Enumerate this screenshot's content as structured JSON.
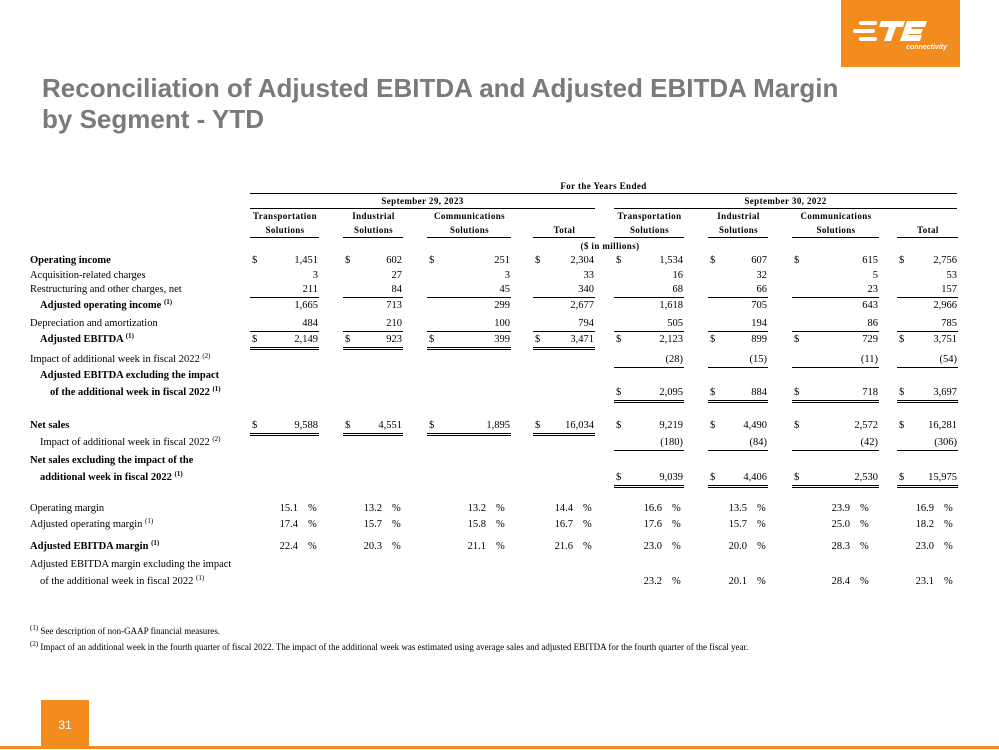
{
  "brand": {
    "name": "TE",
    "tagline": "connectivity",
    "accent_color": "#f28c1e"
  },
  "title": "Reconciliation of Adjusted EBITDA and Adjusted EBITDA Margin by Segment - YTD",
  "table": {
    "period_header": "For the Years Ended",
    "group_2023": "September 29, 2023",
    "group_2022": "September 30, 2022",
    "units": "($ in millions)",
    "columns": [
      {
        "l1": "Transportation",
        "l2": "Solutions"
      },
      {
        "l1": "Industrial",
        "l2": "Solutions"
      },
      {
        "l1": "Communications",
        "l2": "Solutions"
      },
      {
        "l1": "",
        "l2": "Total"
      },
      {
        "l1": "Transportation",
        "l2": "Solutions"
      },
      {
        "l1": "Industrial",
        "l2": "Solutions"
      },
      {
        "l1": "Communications",
        "l2": "Solutions"
      },
      {
        "l1": "",
        "l2": "Total"
      }
    ],
    "rows": [
      {
        "label": "Operating income",
        "sup": "",
        "bold": true,
        "indent": 0,
        "dollar": [
          true,
          true,
          true,
          true,
          true,
          true,
          true,
          true
        ],
        "values": [
          "1,451",
          "602",
          "251",
          "2,304",
          "1,534",
          "607",
          "615",
          "2,756"
        ]
      },
      {
        "label": "Acquisition-related charges",
        "sup": "",
        "bold": false,
        "indent": 0,
        "dollar": [
          false,
          false,
          false,
          false,
          false,
          false,
          false,
          false
        ],
        "values": [
          "3",
          "27",
          "3",
          "33",
          "16",
          "32",
          "5",
          "53"
        ]
      },
      {
        "label": "Restructuring and other charges, net",
        "sup": "",
        "bold": false,
        "indent": 0,
        "dollar": [
          false,
          false,
          false,
          false,
          false,
          false,
          false,
          false
        ],
        "values": [
          "211",
          "84",
          "45",
          "340",
          "68",
          "66",
          "23",
          "157"
        ]
      },
      {
        "label": "Adjusted operating income",
        "sup": "(1)",
        "bold": true,
        "indent": 1,
        "dollar": [
          false,
          false,
          false,
          false,
          false,
          false,
          false,
          false
        ],
        "values": [
          "1,665",
          "713",
          "299",
          "2,677",
          "1,618",
          "705",
          "643",
          "2,966"
        ]
      },
      {
        "label": "Depreciation and amortization",
        "sup": "",
        "bold": false,
        "indent": 0,
        "dollar": [
          false,
          false,
          false,
          false,
          false,
          false,
          false,
          false
        ],
        "values": [
          "484",
          "210",
          "100",
          "794",
          "505",
          "194",
          "86",
          "785"
        ]
      },
      {
        "label": "Adjusted EBITDA",
        "sup": "(1)",
        "bold": true,
        "indent": 1,
        "dollar": [
          true,
          true,
          true,
          true,
          true,
          true,
          true,
          true
        ],
        "values": [
          "2,149",
          "923",
          "399",
          "3,471",
          "2,123",
          "899",
          "729",
          "3,751"
        ]
      },
      {
        "label": "Impact of additional week in fiscal 2022",
        "sup": "(2)",
        "bold": false,
        "indent": 0,
        "dollar": [
          false,
          false,
          false,
          false,
          false,
          false,
          false,
          false
        ],
        "values": [
          "",
          "",
          "",
          "",
          "(28)",
          "(15)",
          "(11)",
          "(54)"
        ]
      },
      {
        "label": "Adjusted EBITDA excluding the impact",
        "label2": "of the additional week in fiscal 2022",
        "sup": "(1)",
        "bold": true,
        "indent": 1,
        "dollar": [
          false,
          false,
          false,
          false,
          true,
          true,
          true,
          true
        ],
        "values": [
          "",
          "",
          "",
          "",
          "2,095",
          "884",
          "718",
          "3,697"
        ]
      },
      {
        "label": "Net sales",
        "sup": "",
        "bold": true,
        "indent": 0,
        "dollar": [
          true,
          true,
          true,
          true,
          true,
          true,
          true,
          true
        ],
        "values": [
          "9,588",
          "4,551",
          "1,895",
          "16,034",
          "9,219",
          "4,490",
          "2,572",
          "16,281"
        ]
      },
      {
        "label": "Impact of additional week in fiscal 2022",
        "sup": "(2)",
        "bold": false,
        "indent": 1,
        "dollar": [
          false,
          false,
          false,
          false,
          false,
          false,
          false,
          false
        ],
        "values": [
          "",
          "",
          "",
          "",
          "(180)",
          "(84)",
          "(42)",
          "(306)"
        ]
      },
      {
        "label": "Net sales excluding the impact of the",
        "label2": "additional week in fiscal 2022",
        "sup": "(1)",
        "bold": true,
        "indent": 0,
        "dollar": [
          false,
          false,
          false,
          false,
          true,
          true,
          true,
          true
        ],
        "values": [
          "",
          "",
          "",
          "",
          "9,039",
          "4,406",
          "2,530",
          "15,975"
        ]
      },
      {
        "label": "Operating margin",
        "sup": "",
        "bold": false,
        "indent": 0,
        "dollar": [
          false,
          false,
          false,
          false,
          false,
          false,
          false,
          false
        ],
        "values": [
          "15.1",
          "13.2",
          "13.2",
          "14.4",
          "16.6",
          "13.5",
          "23.9",
          "16.9"
        ]
      },
      {
        "label": "Adjusted operating margin",
        "sup": "(1)",
        "bold": false,
        "indent": 0,
        "dollar": [
          false,
          false,
          false,
          false,
          false,
          false,
          false,
          false
        ],
        "values": [
          "17.4",
          "15.7",
          "15.8",
          "16.7",
          "17.6",
          "15.7",
          "25.0",
          "18.2"
        ]
      },
      {
        "label": "Adjusted EBITDA margin",
        "sup": "(1)",
        "bold": true,
        "indent": 0,
        "dollar": [
          false,
          false,
          false,
          false,
          false,
          false,
          false,
          false
        ],
        "values": [
          "22.4",
          "20.3",
          "21.1",
          "21.6",
          "23.0",
          "20.0",
          "28.3",
          "23.0"
        ]
      },
      {
        "label": "Adjusted EBITDA margin excluding the impact",
        "label2": "of the additional week in fiscal 2022",
        "sup": "(1)",
        "bold": false,
        "indent": 0,
        "dollar": [
          false,
          false,
          false,
          false,
          false,
          false,
          false,
          false
        ],
        "values": [
          "",
          "",
          "",
          "",
          "23.2",
          "20.1",
          "28.4",
          "23.1"
        ]
      }
    ],
    "dollar_sign": "$",
    "percent_sign": "%"
  },
  "footnotes": [
    {
      "mark": "(1)",
      "text": "See description of non-GAAP financial measures."
    },
    {
      "mark": "(2)",
      "text": "Impact of an additional week in the fourth quarter of fiscal 2022. The impact of the additional week was estimated using average sales and adjusted EBITDA for the fourth quarter of the fiscal year."
    }
  ],
  "page_number": "31"
}
